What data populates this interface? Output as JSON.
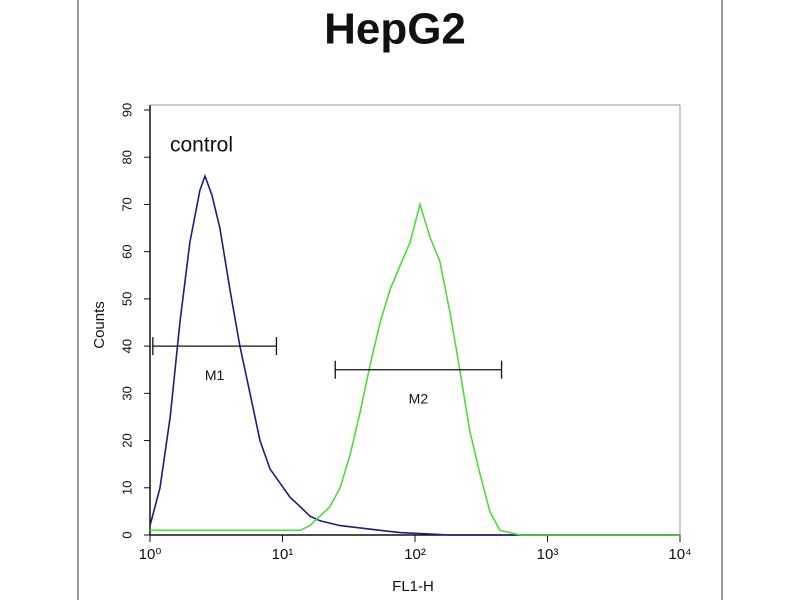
{
  "chart_data": {
    "type": "line",
    "title": "HepG2",
    "xlabel": "FL1-H",
    "ylabel": "Counts",
    "xscale": "log",
    "xlim": [
      1,
      10000
    ],
    "ylim": [
      0,
      90
    ],
    "xticks": [
      {
        "value": 1,
        "label": "10⁰"
      },
      {
        "value": 10,
        "label": "10¹"
      },
      {
        "value": 100,
        "label": "10²"
      },
      {
        "value": 1000,
        "label": "10³"
      },
      {
        "value": 10000,
        "label": "10⁴"
      }
    ],
    "yticks": [
      0,
      10,
      20,
      30,
      40,
      50,
      60,
      70,
      80,
      90
    ],
    "series": [
      {
        "name": "control",
        "color": "#1a1f7a",
        "x": [
          1,
          1.19,
          1.42,
          1.68,
          2.0,
          2.38,
          2.6,
          2.93,
          3.37,
          4.01,
          4.77,
          5.68,
          6.76,
          8.05,
          9.58,
          11.4,
          13.6,
          16.1,
          19.2,
          27.2,
          38.5,
          54.5,
          77,
          184,
          1050,
          10000
        ],
        "values": [
          2,
          10,
          25,
          45,
          62,
          73,
          76,
          72,
          65,
          52,
          40,
          30,
          20,
          14,
          11,
          8,
          6,
          4,
          3,
          2,
          1.5,
          1,
          0.5,
          0,
          0,
          0
        ]
      },
      {
        "color": "#4ddc3a",
        "x": [
          1,
          13.6,
          16.1,
          19.2,
          22.8,
          27.2,
          32.4,
          38.5,
          45.8,
          54.5,
          64.9,
          77,
          91.9,
          109,
          130,
          154,
          184,
          218,
          259,
          309,
          367,
          437,
          619,
          10000
        ],
        "values": [
          1,
          1,
          2,
          4,
          6,
          10,
          17,
          26,
          36,
          45,
          52,
          57,
          62,
          70,
          63,
          58,
          47,
          35,
          22,
          13,
          5,
          1,
          0,
          0
        ]
      }
    ],
    "markers": [
      {
        "label": "M1",
        "x": [
          1.05,
          9
        ],
        "y": 40
      },
      {
        "label": "M2",
        "x": [
          25,
          450
        ],
        "y": 35
      }
    ]
  }
}
